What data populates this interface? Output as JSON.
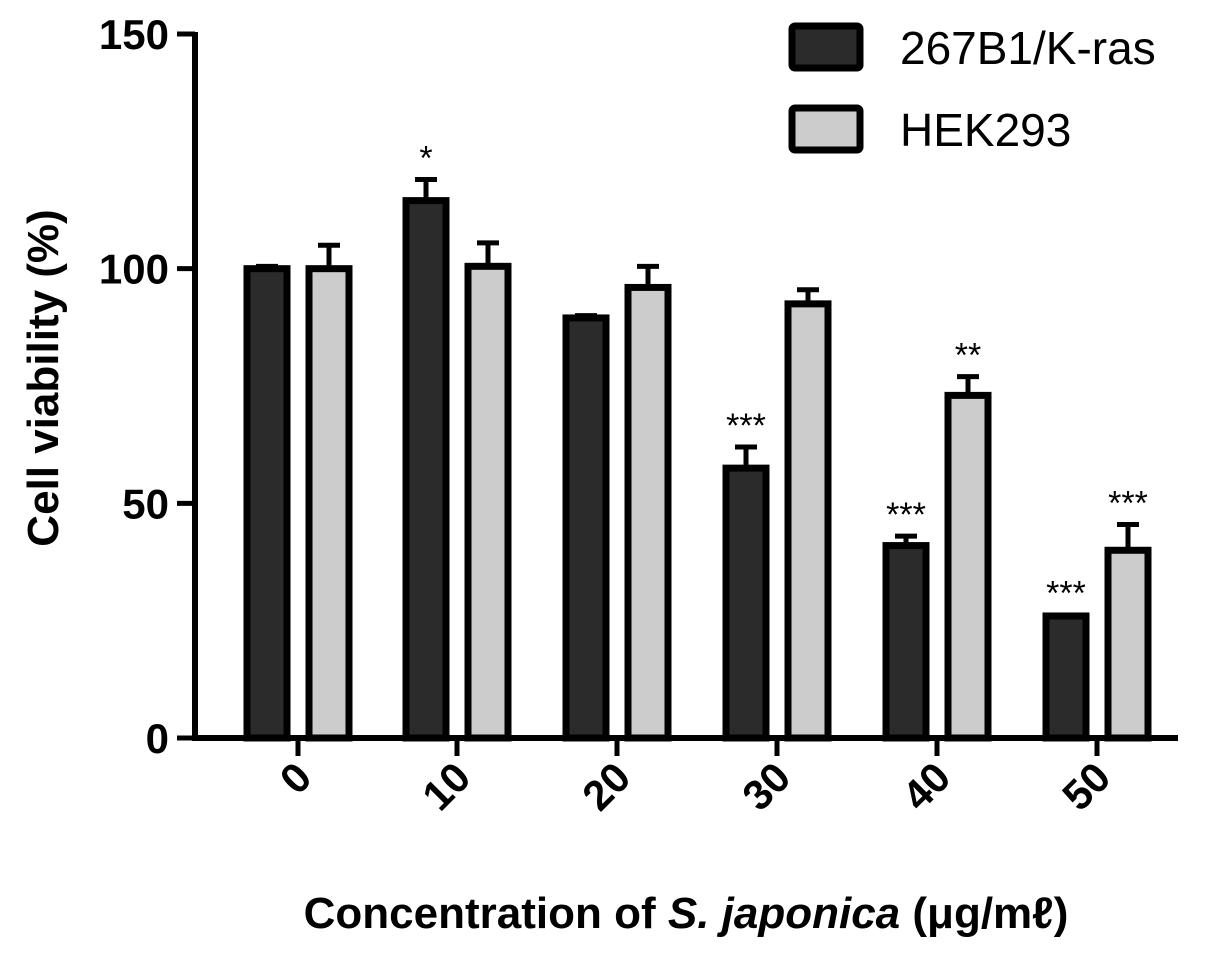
{
  "chart_data": {
    "type": "bar",
    "categories": [
      "0",
      "10",
      "20",
      "30",
      "40",
      "50"
    ],
    "series": [
      {
        "name": "267B1/K-ras",
        "values": [
          100,
          114.5,
          89.5,
          57.5,
          41,
          26
        ],
        "errors": [
          0.5,
          4.5,
          0.5,
          4.5,
          2,
          0.3
        ],
        "significance": [
          "",
          "*",
          "",
          "***",
          "***",
          "***"
        ],
        "color": "#2b2b2b"
      },
      {
        "name": "HEK293",
        "values": [
          100,
          100.5,
          96,
          92.5,
          73,
          40
        ],
        "errors": [
          5,
          5,
          4.5,
          3,
          4,
          5.5
        ],
        "significance": [
          "",
          "",
          "",
          "",
          "**",
          "***"
        ],
        "color": "#cccccc"
      }
    ],
    "xlabel_parts": [
      "Concentration of ",
      "S. japonica",
      " (",
      "μg/mℓ",
      ")"
    ],
    "ylabel": "Cell viability (%)",
    "ylim": [
      0,
      150
    ],
    "yticks": [
      "0",
      "50",
      "100",
      "150"
    ],
    "legend_position": "top-right",
    "grid": false
  }
}
